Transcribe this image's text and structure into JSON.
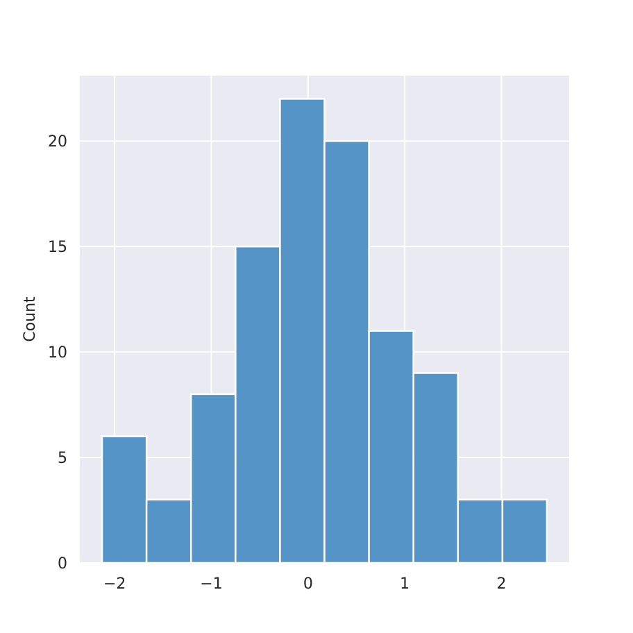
{
  "chart_data": {
    "type": "bar",
    "subtype": "histogram",
    "bin_edges": [
      -2.13,
      -1.67,
      -1.21,
      -0.75,
      -0.29,
      0.17,
      0.63,
      1.09,
      1.55,
      2.01,
      2.47
    ],
    "values": [
      6,
      3,
      8,
      15,
      22,
      20,
      11,
      9,
      3,
      3
    ],
    "xlim": [
      -2.36,
      2.7
    ],
    "ylim": [
      0,
      23.1
    ],
    "xticks": [
      -2,
      -1,
      0,
      1,
      2
    ],
    "xtick_labels": [
      "−2",
      "−1",
      "0",
      "1",
      "2"
    ],
    "yticks": [
      0,
      5,
      10,
      15,
      20
    ],
    "ytick_labels": [
      "0",
      "5",
      "10",
      "15",
      "20"
    ],
    "xlabel": "",
    "ylabel": "Count",
    "title": "",
    "grid": true,
    "colors": {
      "background": "#eaeaf2",
      "grid": "#ffffff",
      "bar_fill": "#4c8fc3",
      "bar_edge": "#ffffff",
      "text": "#262626"
    }
  }
}
